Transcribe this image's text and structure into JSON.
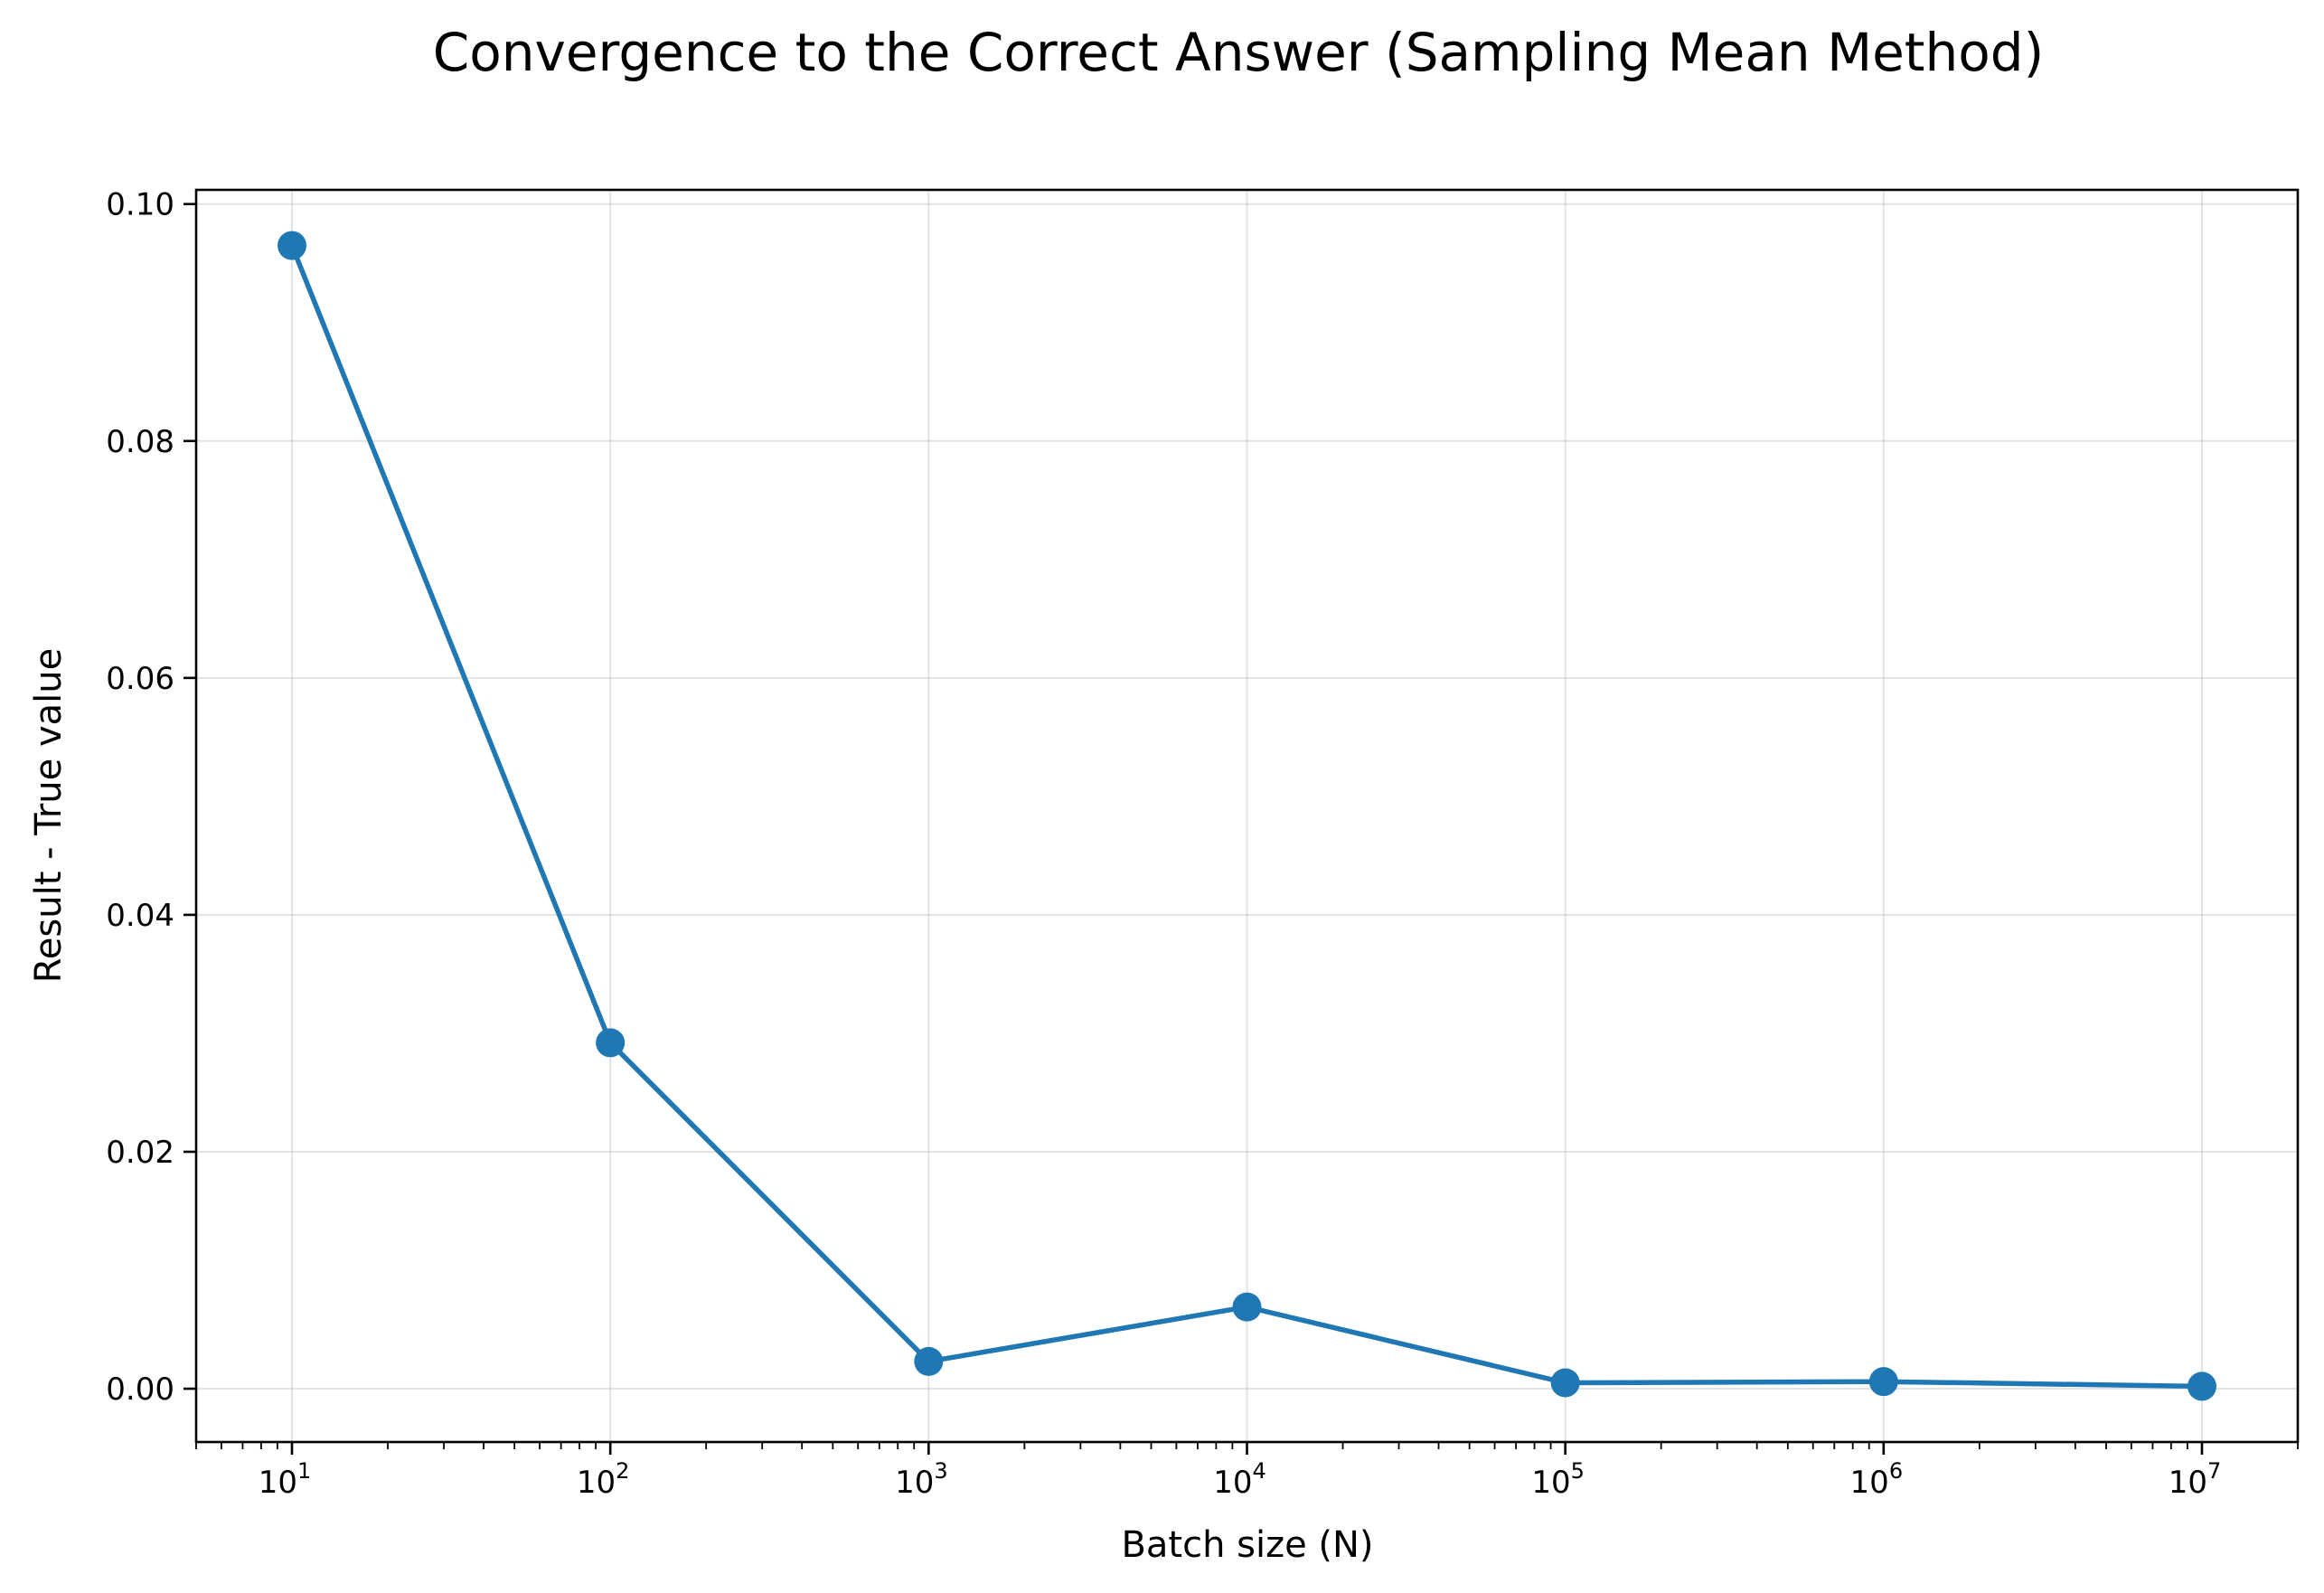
{
  "chart_data": {
    "type": "line",
    "title": "Convergence to the Correct Answer (Sampling Mean Method)",
    "xlabel": "Batch size (N)",
    "ylabel": "Result - True value",
    "x_scale": "log",
    "x": [
      10,
      100,
      1000,
      10000,
      100000,
      1000000,
      10000000
    ],
    "x_ticks": [
      {
        "base": "10",
        "exp": "1"
      },
      {
        "base": "10",
        "exp": "2"
      },
      {
        "base": "10",
        "exp": "3"
      },
      {
        "base": "10",
        "exp": "4"
      },
      {
        "base": "10",
        "exp": "5"
      },
      {
        "base": "10",
        "exp": "6"
      },
      {
        "base": "10",
        "exp": "7"
      }
    ],
    "y_ticks": [
      "0.00",
      "0.02",
      "0.04",
      "0.06",
      "0.08",
      "0.10"
    ],
    "xlim": [
      5.0,
      20000000
    ],
    "ylim": [
      -0.0045,
      0.1012
    ],
    "grid": true,
    "series": [
      {
        "values": [
          0.0965,
          0.0292,
          0.0023,
          0.0069,
          0.0005,
          0.0006,
          0.0002
        ],
        "color": "#1f77b4",
        "marker": "circle"
      }
    ]
  }
}
